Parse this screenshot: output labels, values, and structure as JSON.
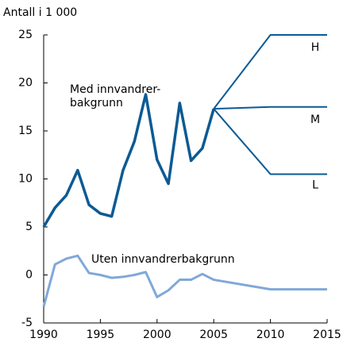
{
  "chart_data": {
    "type": "line",
    "ylabel": "Antall i 1 000",
    "x": [
      1990,
      1991,
      1992,
      1993,
      1994,
      1995,
      1996,
      1997,
      1998,
      1999,
      2000,
      2001,
      2002,
      2003,
      2004,
      2005,
      2010,
      2015
    ],
    "xlim": [
      1990,
      2015
    ],
    "xticks": [
      1990,
      1995,
      2000,
      2005,
      2010,
      2015
    ],
    "ylim": [
      -5,
      25
    ],
    "yticks": [
      -5,
      0,
      5,
      10,
      15,
      20,
      25
    ],
    "series": [
      {
        "name_lines": [
          "Med innvandrer-",
          "bakgrunn"
        ],
        "color": "#0b5a94",
        "width": 3.5,
        "values": [
          5.0,
          7.0,
          8.3,
          10.9,
          7.3,
          6.4,
          6.1,
          10.9,
          13.9,
          18.8,
          12.0,
          9.5,
          17.9,
          11.9,
          13.2,
          17.3,
          null,
          null
        ]
      },
      {
        "name": "H",
        "color": "#0b5a94",
        "width": 2,
        "values": [
          null,
          null,
          null,
          null,
          null,
          null,
          null,
          null,
          null,
          null,
          null,
          null,
          null,
          null,
          null,
          17.3,
          25,
          25
        ]
      },
      {
        "name": "M",
        "color": "#0b5a94",
        "width": 2,
        "values": [
          null,
          null,
          null,
          null,
          null,
          null,
          null,
          null,
          null,
          null,
          null,
          null,
          null,
          null,
          null,
          17.3,
          17.5,
          17.5
        ]
      },
      {
        "name": "L",
        "color": "#0b5a94",
        "width": 2,
        "values": [
          null,
          null,
          null,
          null,
          null,
          null,
          null,
          null,
          null,
          null,
          null,
          null,
          null,
          null,
          null,
          17.3,
          10.5,
          10.5
        ]
      },
      {
        "name": "Uten innvandrerbakgrunn",
        "color": "#80a8d8",
        "width": 3,
        "values": [
          -3.3,
          1.1,
          1.7,
          2.0,
          0.2,
          0.0,
          -0.3,
          -0.2,
          0.0,
          0.3,
          -2.3,
          -1.6,
          -0.5,
          -0.5,
          0.1,
          -0.5,
          -1.5,
          -1.5
        ]
      }
    ]
  }
}
